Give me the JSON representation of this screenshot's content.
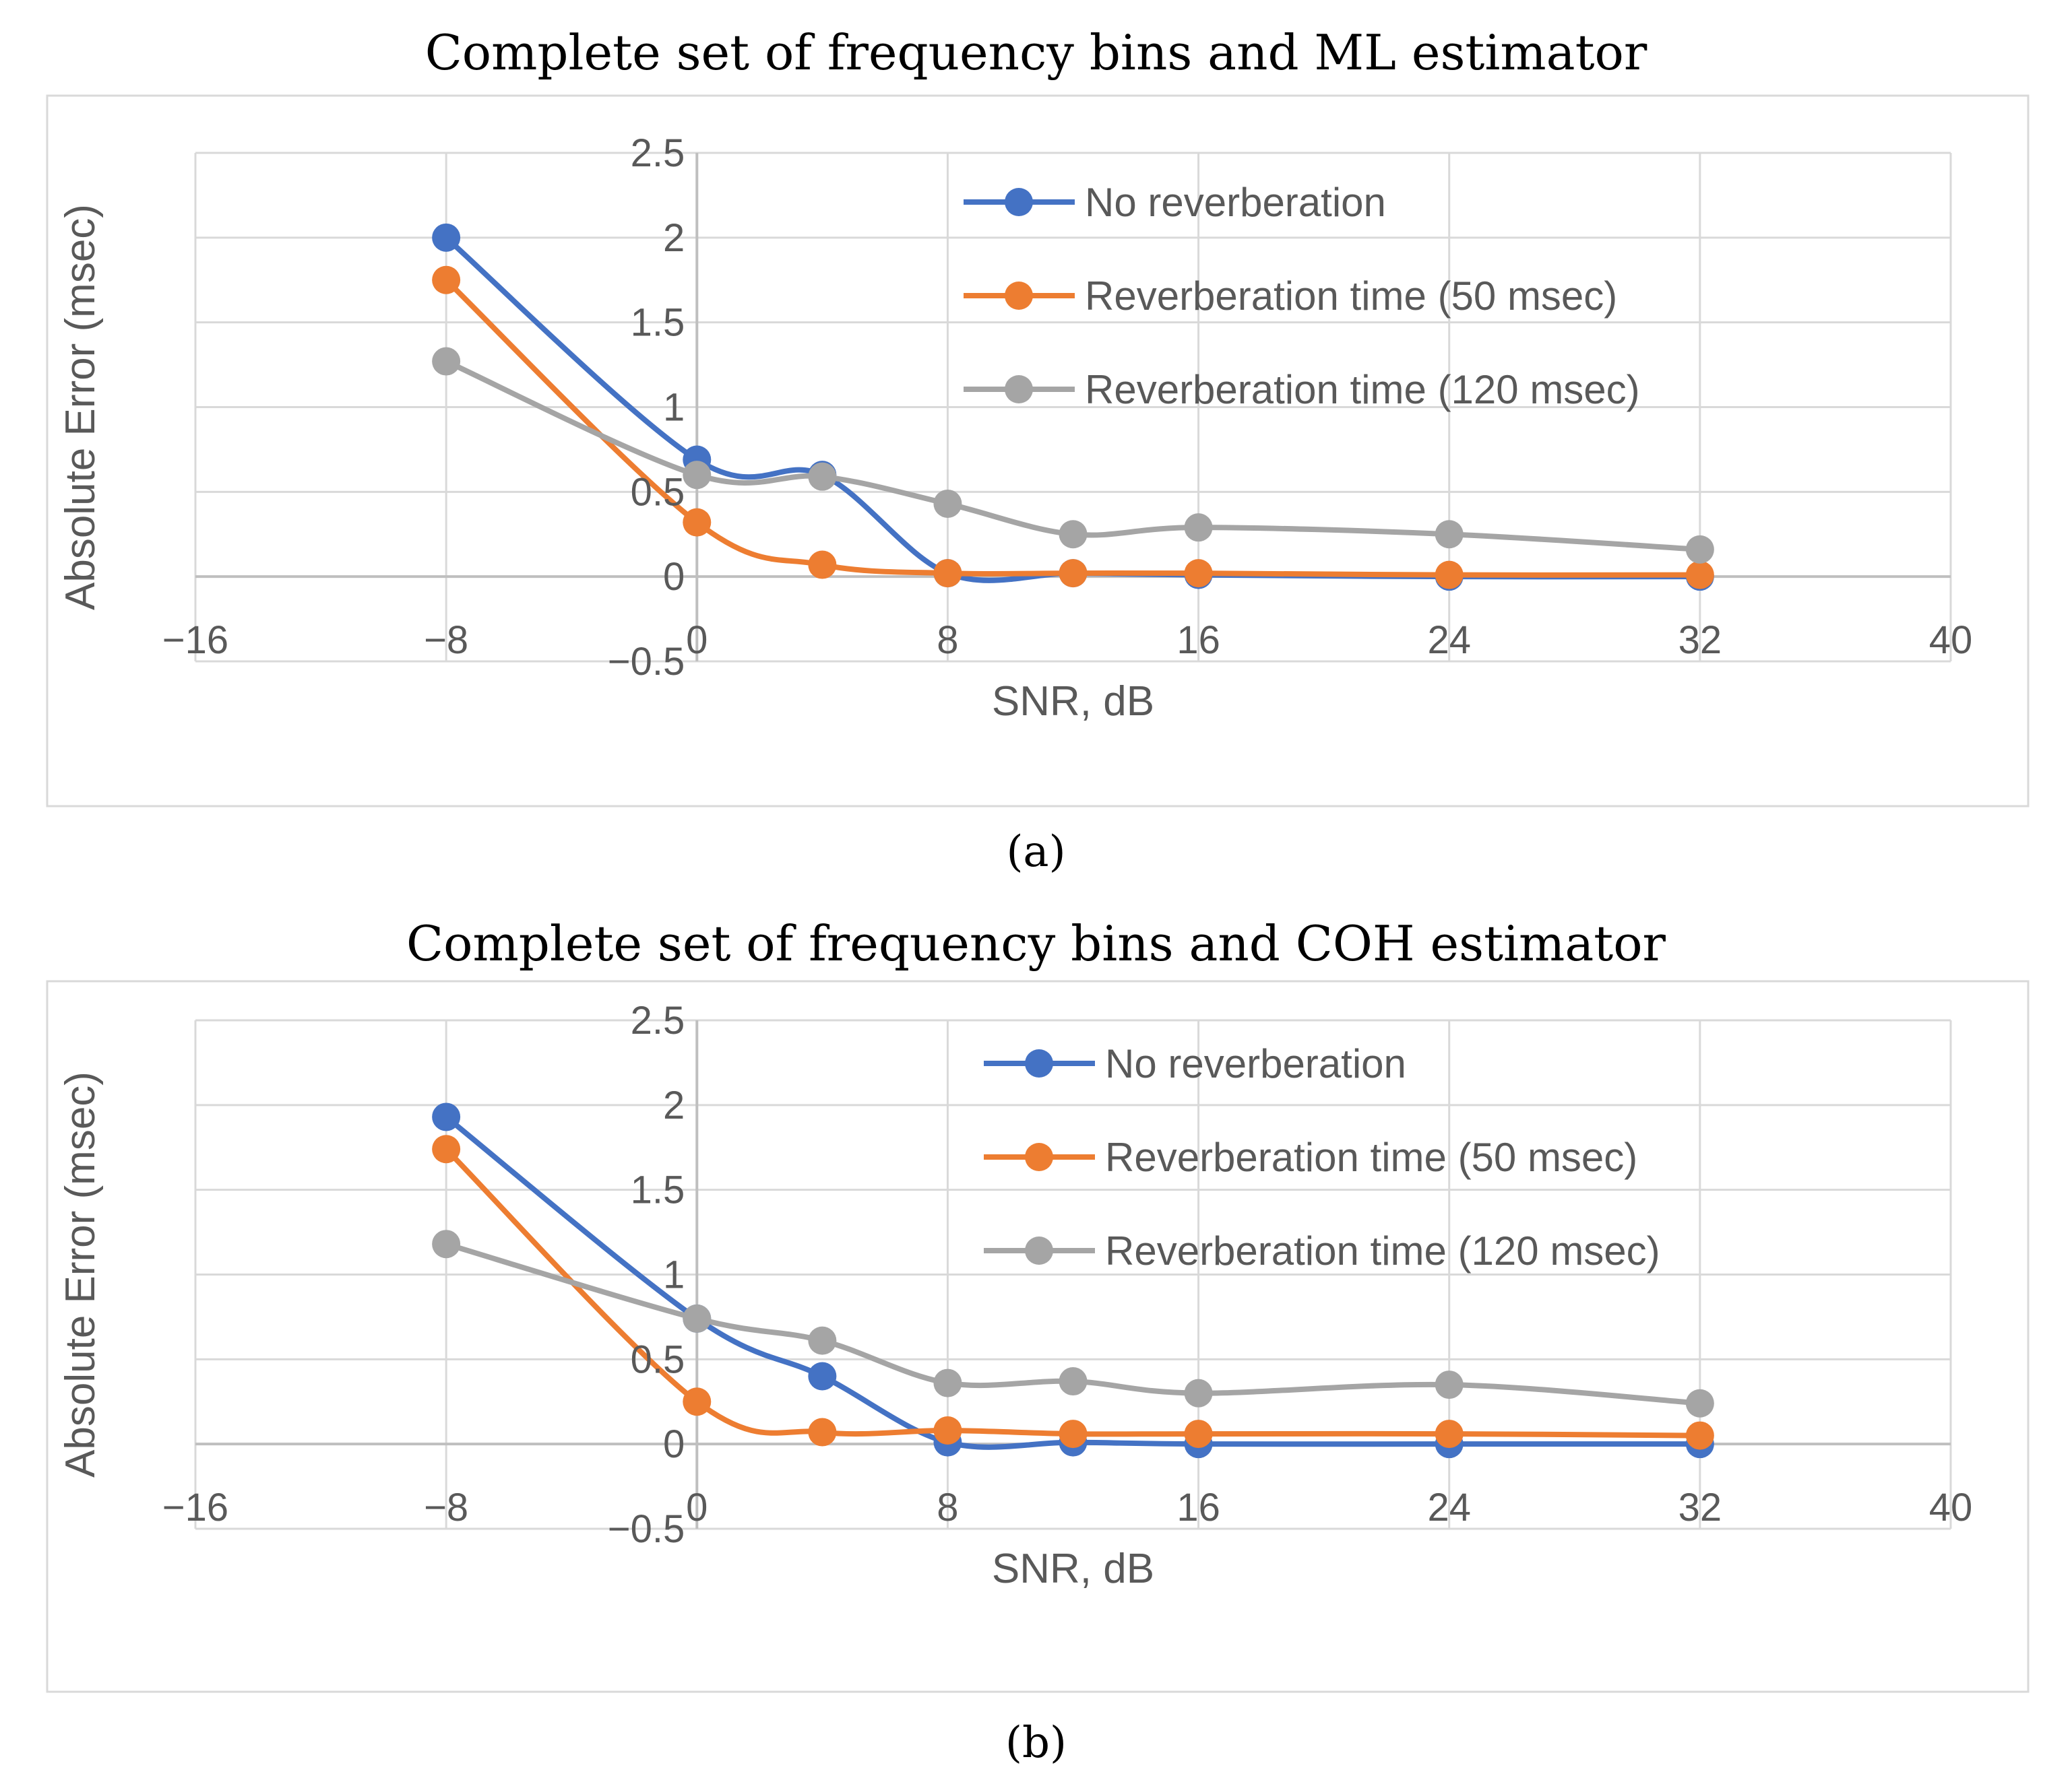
{
  "chart_data": [
    {
      "type": "scatter",
      "title": "Complete set of frequency bins and ML estimator",
      "caption": "(a)",
      "xlabel": "SNR, dB",
      "ylabel": "Absolute Error (msec)",
      "xlim": [
        -16,
        40
      ],
      "ylim": [
        -0.5,
        2.5
      ],
      "xticks": [
        -16,
        -8,
        0,
        8,
        16,
        24,
        32,
        40
      ],
      "xtick_labels": [
        "−16",
        "−8",
        "0",
        "8",
        "16",
        "24",
        "32",
        "40"
      ],
      "yticks": [
        -0.5,
        0,
        0.5,
        1,
        1.5,
        2,
        2.5
      ],
      "ytick_labels": [
        "−0.5",
        "0",
        "0.5",
        "1",
        "1.5",
        "2",
        "2.5"
      ],
      "grid": true,
      "legend_position": "top-right",
      "series": [
        {
          "name": "No reverberation",
          "color": "#4472C4",
          "x": [
            -8,
            0,
            4,
            8,
            12,
            16,
            24,
            32
          ],
          "y": [
            2.0,
            0.69,
            0.6,
            0.02,
            0.02,
            0.01,
            0.0,
            0.0
          ]
        },
        {
          "name": "Reverberation time (50 msec)",
          "color": "#ED7D31",
          "x": [
            -8,
            0,
            4,
            8,
            12,
            16,
            24,
            32
          ],
          "y": [
            1.75,
            0.32,
            0.07,
            0.02,
            0.02,
            0.02,
            0.01,
            0.01
          ]
        },
        {
          "name": "Reverberation time (120 msec)",
          "color": "#A5A5A5",
          "x": [
            -8,
            0,
            4,
            8,
            12,
            16,
            24,
            32
          ],
          "y": [
            1.27,
            0.6,
            0.59,
            0.43,
            0.25,
            0.29,
            0.25,
            0.16
          ]
        }
      ]
    },
    {
      "type": "scatter",
      "title": "Complete set of frequency bins and COH estimator",
      "caption": "(b)",
      "xlabel": "SNR, dB",
      "ylabel": "Absolute Error (msec)",
      "xlim": [
        -16,
        40
      ],
      "ylim": [
        -0.5,
        2.5
      ],
      "xticks": [
        -16,
        -8,
        0,
        8,
        16,
        24,
        32,
        40
      ],
      "xtick_labels": [
        "−16",
        "−8",
        "0",
        "8",
        "16",
        "24",
        "32",
        "40"
      ],
      "yticks": [
        -0.5,
        0,
        0.5,
        1,
        1.5,
        2,
        2.5
      ],
      "ytick_labels": [
        "−0.5",
        "0",
        "0.5",
        "1",
        "1.5",
        "2",
        "2.5"
      ],
      "grid": true,
      "legend_position": "top-right",
      "series": [
        {
          "name": "No reverberation",
          "color": "#4472C4",
          "x": [
            -8,
            0,
            4,
            8,
            12,
            16,
            24,
            32
          ],
          "y": [
            1.93,
            0.74,
            0.4,
            0.01,
            0.01,
            0.0,
            0.0,
            0.0
          ]
        },
        {
          "name": "Reverberation time (50 msec)",
          "color": "#ED7D31",
          "x": [
            -8,
            0,
            4,
            8,
            12,
            16,
            24,
            32
          ],
          "y": [
            1.74,
            0.25,
            0.07,
            0.08,
            0.06,
            0.06,
            0.06,
            0.05
          ]
        },
        {
          "name": "Reverberation time (120 msec)",
          "color": "#A5A5A5",
          "x": [
            -8,
            0,
            4,
            8,
            12,
            16,
            24,
            32
          ],
          "y": [
            1.18,
            0.74,
            0.61,
            0.36,
            0.37,
            0.3,
            0.35,
            0.24
          ]
        }
      ]
    }
  ]
}
